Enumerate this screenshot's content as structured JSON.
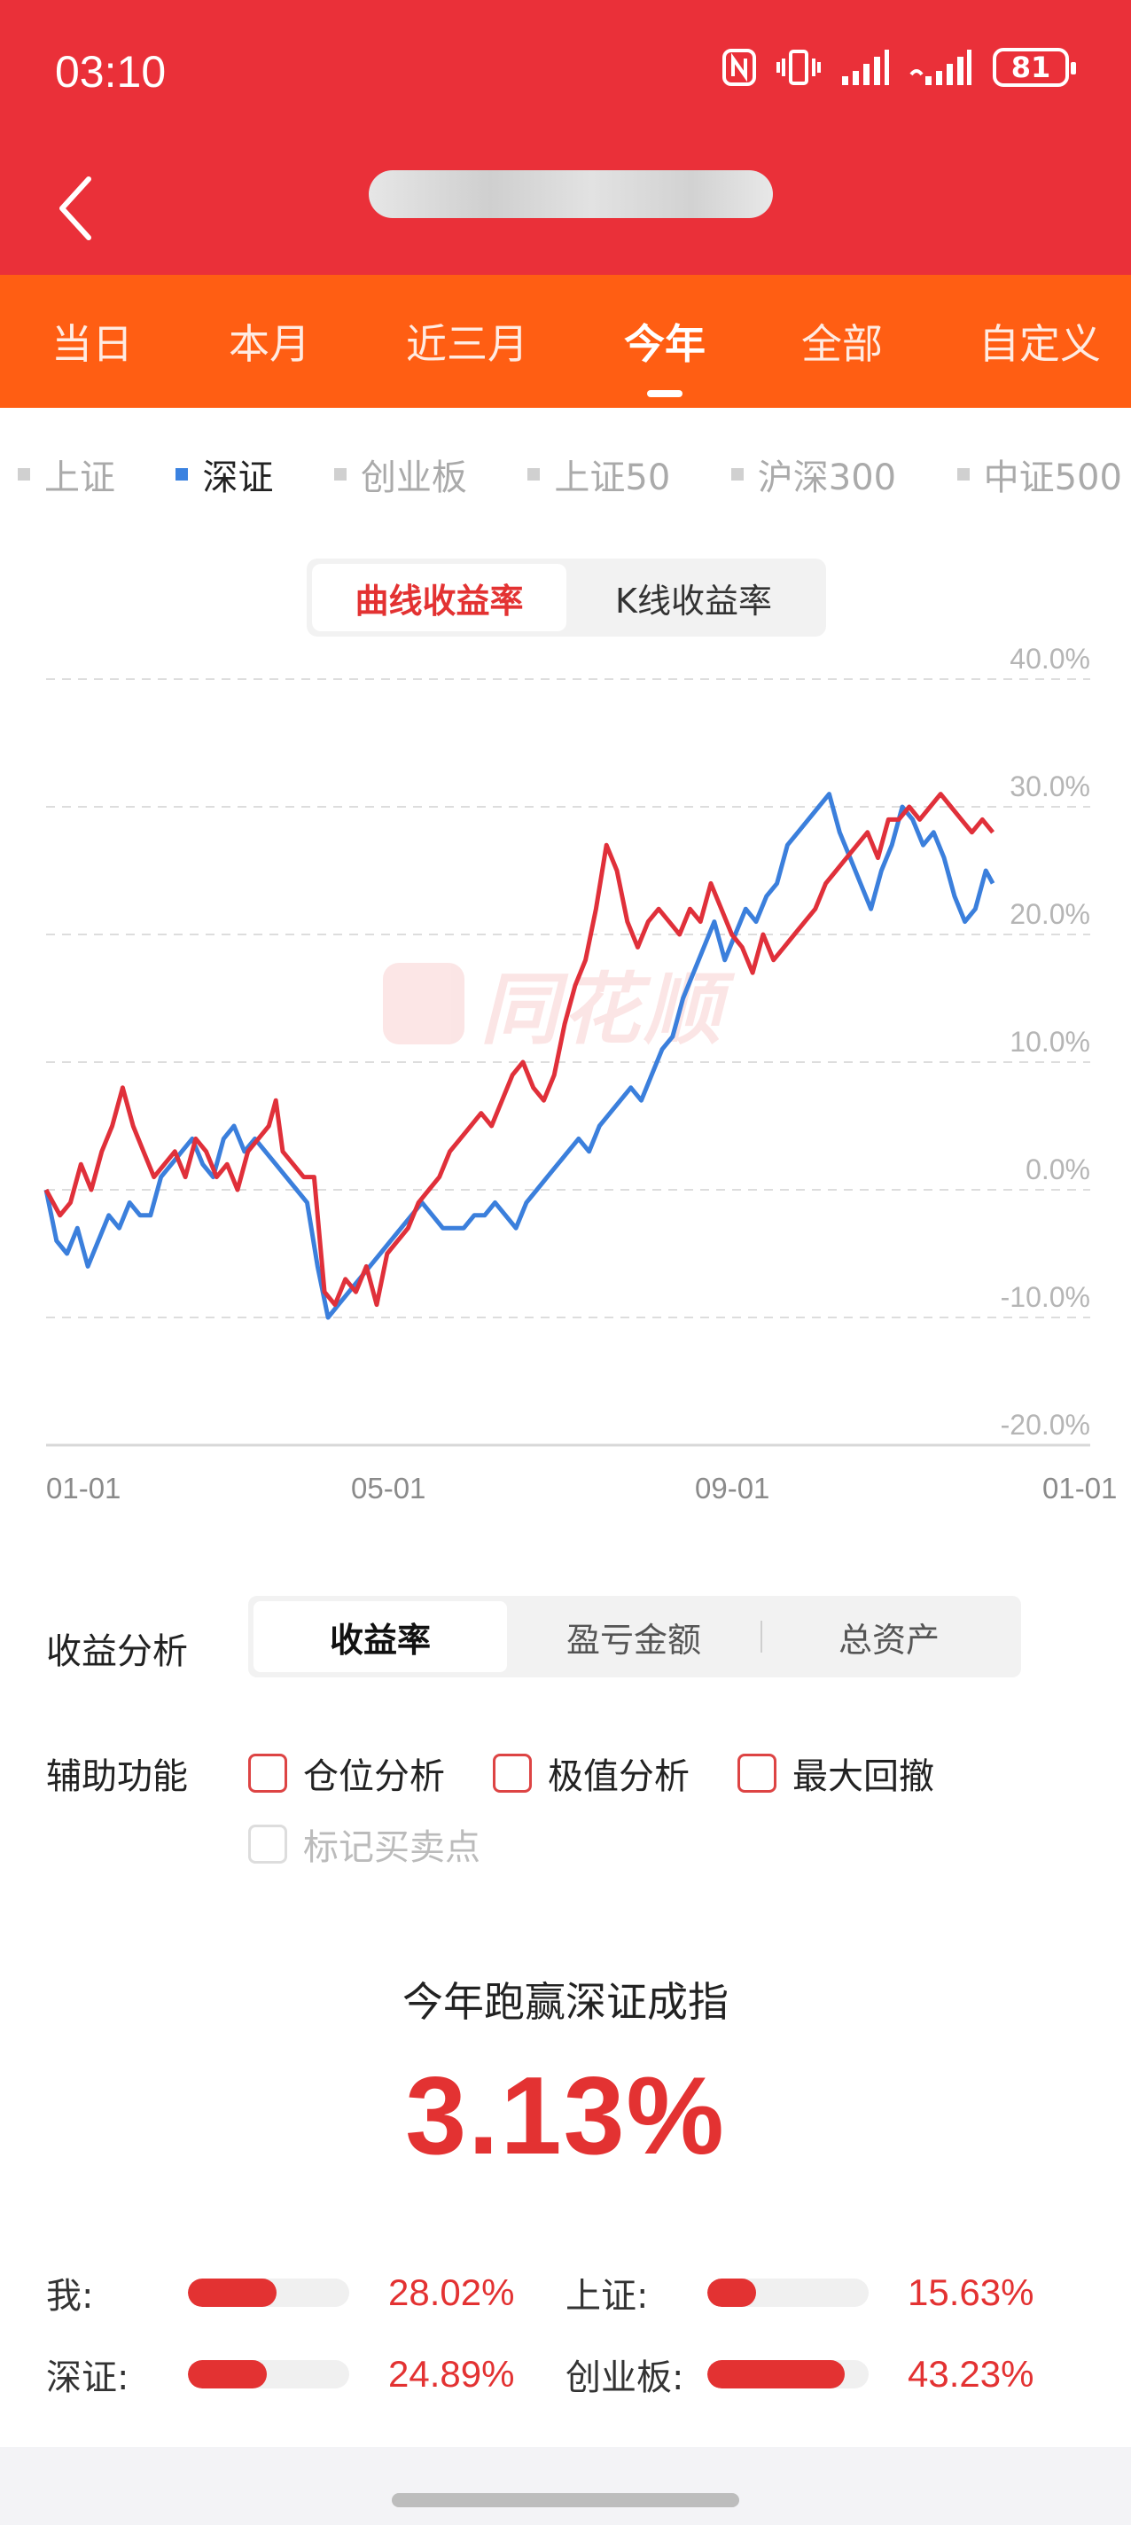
{
  "status": {
    "time": "03:10",
    "battery": "81"
  },
  "header": {
    "title_redacted": true
  },
  "period_tabs": [
    {
      "label": "当日",
      "active": false
    },
    {
      "label": "本月",
      "active": false
    },
    {
      "label": "近三月",
      "active": false
    },
    {
      "label": "今年",
      "active": true
    },
    {
      "label": "全部",
      "active": false
    },
    {
      "label": "自定义",
      "active": false
    }
  ],
  "index_legend": [
    {
      "label": "上证",
      "active": false
    },
    {
      "label": "深证",
      "active": true
    },
    {
      "label": "创业板",
      "active": false
    },
    {
      "label": "上证50",
      "active": false
    },
    {
      "label": "沪深300",
      "active": false
    },
    {
      "label": "中证500",
      "active": false
    }
  ],
  "chart_toggle": {
    "curve": "曲线收益率",
    "kline": "K线收益率"
  },
  "watermark": "同花顺",
  "chart_data": {
    "type": "line",
    "y_ticks": [
      "40.0%",
      "30.0%",
      "20.0%",
      "10.0%",
      "0.0%",
      "-10.0%",
      "-20.0%"
    ],
    "x_ticks": [
      "01-01",
      "05-01",
      "09-01",
      "01-01"
    ],
    "ylim": [
      -20,
      40
    ],
    "grid": true,
    "colors": {
      "mine": "#e0303a",
      "shenzhen": "#3b7fdc"
    },
    "series": [
      {
        "key": "mine",
        "points": [
          [
            0,
            0
          ],
          [
            4,
            -2
          ],
          [
            7,
            -1
          ],
          [
            10,
            2
          ],
          [
            13,
            0
          ],
          [
            16,
            3
          ],
          [
            19,
            5
          ],
          [
            22,
            8
          ],
          [
            25,
            5
          ],
          [
            28,
            3
          ],
          [
            31,
            1
          ],
          [
            34,
            2
          ],
          [
            37,
            3
          ],
          [
            40,
            1
          ],
          [
            43,
            4
          ],
          [
            46,
            3
          ],
          [
            49,
            1
          ],
          [
            52,
            2
          ],
          [
            55,
            0
          ],
          [
            58,
            3
          ],
          [
            61,
            4
          ],
          [
            64,
            5
          ],
          [
            66,
            7
          ],
          [
            68,
            3
          ],
          [
            71,
            2
          ],
          [
            74,
            1
          ],
          [
            77,
            1
          ],
          [
            80,
            -8
          ],
          [
            83,
            -9
          ],
          [
            86,
            -7
          ],
          [
            89,
            -8
          ],
          [
            92,
            -6
          ],
          [
            95,
            -9
          ],
          [
            98,
            -5
          ],
          [
            101,
            -4
          ],
          [
            104,
            -3
          ],
          [
            107,
            -1
          ],
          [
            110,
            0
          ],
          [
            113,
            1
          ],
          [
            116,
            3
          ],
          [
            119,
            4
          ],
          [
            122,
            5
          ],
          [
            125,
            6
          ],
          [
            128,
            5
          ],
          [
            131,
            7
          ],
          [
            134,
            9
          ],
          [
            137,
            10
          ],
          [
            140,
            8
          ],
          [
            143,
            7
          ],
          [
            146,
            9
          ],
          [
            149,
            13
          ],
          [
            152,
            16
          ],
          [
            155,
            18
          ],
          [
            158,
            22
          ],
          [
            161,
            27
          ],
          [
            164,
            25
          ],
          [
            167,
            21
          ],
          [
            170,
            19
          ],
          [
            173,
            21
          ],
          [
            176,
            22
          ],
          [
            179,
            21
          ],
          [
            182,
            20
          ],
          [
            185,
            22
          ],
          [
            188,
            21
          ],
          [
            191,
            24
          ],
          [
            194,
            22
          ],
          [
            197,
            20
          ],
          [
            200,
            19
          ],
          [
            203,
            17
          ],
          [
            206,
            20
          ],
          [
            209,
            18
          ],
          [
            212,
            19
          ],
          [
            215,
            20
          ],
          [
            218,
            21
          ],
          [
            221,
            22
          ],
          [
            224,
            24
          ],
          [
            227,
            25
          ],
          [
            230,
            26
          ],
          [
            233,
            27
          ],
          [
            236,
            28
          ],
          [
            239,
            26
          ],
          [
            242,
            29
          ],
          [
            245,
            29
          ],
          [
            248,
            30
          ],
          [
            251,
            29
          ],
          [
            254,
            30
          ],
          [
            257,
            31
          ],
          [
            260,
            30
          ],
          [
            263,
            29
          ],
          [
            266,
            28
          ],
          [
            269,
            29
          ],
          [
            272,
            28
          ]
        ]
      },
      {
        "key": "shenzhen",
        "points": [
          [
            0,
            0
          ],
          [
            3,
            -4
          ],
          [
            6,
            -5
          ],
          [
            9,
            -3
          ],
          [
            12,
            -6
          ],
          [
            15,
            -4
          ],
          [
            18,
            -2
          ],
          [
            21,
            -3
          ],
          [
            24,
            -1
          ],
          [
            27,
            -2
          ],
          [
            30,
            -2
          ],
          [
            33,
            1
          ],
          [
            36,
            2
          ],
          [
            39,
            3
          ],
          [
            42,
            4
          ],
          [
            45,
            2
          ],
          [
            48,
            1
          ],
          [
            51,
            4
          ],
          [
            54,
            5
          ],
          [
            57,
            3
          ],
          [
            60,
            4
          ],
          [
            63,
            3
          ],
          [
            66,
            2
          ],
          [
            69,
            1
          ],
          [
            72,
            0
          ],
          [
            75,
            -1
          ],
          [
            78,
            -6
          ],
          [
            81,
            -10
          ],
          [
            84,
            -9
          ],
          [
            87,
            -8
          ],
          [
            90,
            -7
          ],
          [
            93,
            -6
          ],
          [
            96,
            -5
          ],
          [
            99,
            -4
          ],
          [
            102,
            -3
          ],
          [
            105,
            -2
          ],
          [
            108,
            -1
          ],
          [
            111,
            -2
          ],
          [
            114,
            -3
          ],
          [
            117,
            -3
          ],
          [
            120,
            -3
          ],
          [
            123,
            -2
          ],
          [
            126,
            -2
          ],
          [
            129,
            -1
          ],
          [
            132,
            -2
          ],
          [
            135,
            -3
          ],
          [
            138,
            -1
          ],
          [
            141,
            0
          ],
          [
            144,
            1
          ],
          [
            147,
            2
          ],
          [
            150,
            3
          ],
          [
            153,
            4
          ],
          [
            156,
            3
          ],
          [
            159,
            5
          ],
          [
            162,
            6
          ],
          [
            165,
            7
          ],
          [
            168,
            8
          ],
          [
            171,
            7
          ],
          [
            174,
            9
          ],
          [
            177,
            11
          ],
          [
            180,
            12
          ],
          [
            183,
            15
          ],
          [
            186,
            17
          ],
          [
            189,
            19
          ],
          [
            192,
            21
          ],
          [
            195,
            18
          ],
          [
            198,
            20
          ],
          [
            201,
            22
          ],
          [
            204,
            21
          ],
          [
            207,
            23
          ],
          [
            210,
            24
          ],
          [
            213,
            27
          ],
          [
            216,
            28
          ],
          [
            219,
            29
          ],
          [
            222,
            30
          ],
          [
            225,
            31
          ],
          [
            228,
            28
          ],
          [
            231,
            26
          ],
          [
            234,
            24
          ],
          [
            237,
            22
          ],
          [
            240,
            25
          ],
          [
            243,
            27
          ],
          [
            246,
            30
          ],
          [
            249,
            29
          ],
          [
            252,
            27
          ],
          [
            255,
            28
          ],
          [
            258,
            26
          ],
          [
            261,
            23
          ],
          [
            264,
            21
          ],
          [
            267,
            22
          ],
          [
            270,
            25
          ],
          [
            272,
            24
          ]
        ]
      }
    ],
    "x_range": [
      0,
      300
    ]
  },
  "analysis": {
    "label": "收益分析",
    "tabs": [
      {
        "label": "收益率",
        "active": true
      },
      {
        "label": "盈亏金额",
        "active": false
      },
      {
        "label": "总资产",
        "active": false
      }
    ]
  },
  "aux": {
    "label": "辅助功能",
    "options": [
      "仓位分析",
      "极值分析",
      "最大回撤"
    ],
    "disabled_option": "标记买卖点"
  },
  "summary": {
    "title": "今年跑赢深证成指",
    "value": "3.13%"
  },
  "stats": [
    {
      "label": "我:",
      "value": "28.02%",
      "fill": 0.55
    },
    {
      "label": "上证:",
      "value": "15.63%",
      "fill": 0.3
    },
    {
      "label": "深证:",
      "value": "24.89%",
      "fill": 0.49
    },
    {
      "label": "创业板:",
      "value": "43.23%",
      "fill": 0.85
    }
  ]
}
